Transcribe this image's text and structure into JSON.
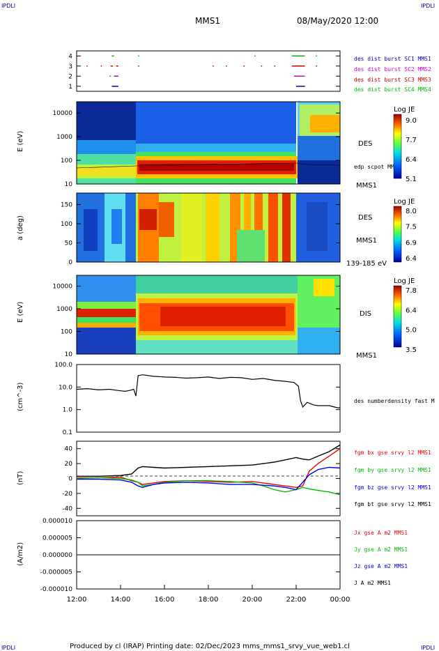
{
  "header": {
    "corner_tl": "IPDLI",
    "corner_tr": "IPDLI",
    "corner_bl": "IPDLI",
    "corner_br": "IPDLI",
    "spacecraft": "MMS1",
    "datetime": "08/May/2020 12:00"
  },
  "footer": {
    "text": "Produced by cl (IRAP)   Printing date: 02/Dec/2023   mms_mms1_srvy_vue_web1.cl"
  },
  "chart_data": [
    {
      "type": "scatter",
      "name": "burst-panel",
      "y_ticks": [
        "1",
        "2",
        "3",
        "4"
      ],
      "ylim": [
        0.5,
        4.5
      ],
      "legend": [
        {
          "label": "des dist burst SC1 MMS1",
          "color": "#0000cc"
        },
        {
          "label": "des dist burst SC2 MMS2",
          "color": "#cc00cc"
        },
        {
          "label": "des dist burst SC3 MMS3",
          "color": "#cc0000"
        },
        {
          "label": "des dist burst SC4 MMS4",
          "color": "#00bb00"
        }
      ],
      "intervals": [
        {
          "level": 4,
          "color": "#00bb00",
          "spans": [
            [
              13.6,
              13.7
            ],
            [
              14.8,
              14.85
            ],
            [
              20.1,
              20.15
            ],
            [
              21.8,
              22.4
            ],
            [
              22.9,
              22.95
            ]
          ]
        },
        {
          "level": 3,
          "color": "#cc0000",
          "spans": [
            [
              12.45,
              12.5
            ],
            [
              13.1,
              13.15
            ],
            [
              13.55,
              13.65
            ],
            [
              13.8,
              13.9
            ],
            [
              14.8,
              14.85
            ],
            [
              18.2,
              18.25
            ],
            [
              18.8,
              18.85
            ],
            [
              19.6,
              19.65
            ],
            [
              20.4,
              20.45
            ],
            [
              21.0,
              21.05
            ],
            [
              21.8,
              22.4
            ],
            [
              22.9,
              22.95
            ]
          ]
        },
        {
          "level": 2,
          "color": "#cc00cc",
          "spans": [
            [
              13.5,
              13.55
            ],
            [
              13.7,
              13.9
            ],
            [
              21.9,
              22.4
            ]
          ]
        },
        {
          "level": 1,
          "color": "#0000cc",
          "spans": [
            [
              13.6,
              13.9
            ],
            [
              22.0,
              22.4
            ]
          ]
        }
      ]
    },
    {
      "type": "heatmap",
      "name": "des-energy",
      "ylabel": "E (eV)",
      "y_ticks": [
        "10",
        "100",
        "1000",
        "10000"
      ],
      "ylim": [
        10,
        30000
      ],
      "log_y": true,
      "right_labels": [
        "DES",
        "edp scpot MMS1",
        "MMS1"
      ],
      "colorbar": {
        "title": "Log JE",
        "ticks": [
          "9.0",
          "7.7",
          "6.4",
          "5.1"
        ]
      }
    },
    {
      "type": "heatmap",
      "name": "des-pitch",
      "ylabel": "a (deg)",
      "y_ticks": [
        "0",
        "50",
        "100",
        "150"
      ],
      "ylim": [
        0,
        180
      ],
      "right_labels": [
        "DES",
        "MMS1",
        "139-185 eV"
      ],
      "colorbar": {
        "title": "Log JE",
        "ticks": [
          "8.0",
          "7.5",
          "6.9",
          "6.4"
        ]
      }
    },
    {
      "type": "heatmap",
      "name": "dis-energy",
      "ylabel": "E (eV)",
      "y_ticks": [
        "10",
        "100",
        "1000",
        "10000"
      ],
      "ylim": [
        10,
        30000
      ],
      "log_y": true,
      "right_labels": [
        "DIS",
        "MMS1"
      ],
      "colorbar": {
        "title": "Log JE",
        "ticks": [
          "7.8",
          "6.4",
          "5.0",
          "3.5"
        ]
      }
    },
    {
      "type": "line",
      "name": "density",
      "ylabel": "(cm^-3)",
      "y_ticks": [
        "0.1",
        "1.0",
        "10.0",
        "100.0"
      ],
      "ylim": [
        0.1,
        100
      ],
      "log_y": true,
      "series": [
        {
          "name": "des numberdensity fast M",
          "color": "#000000",
          "x": [
            12.0,
            12.5,
            13.0,
            13.5,
            13.9,
            14.2,
            14.4,
            14.6,
            14.7,
            14.8,
            15.0,
            15.5,
            16.0,
            16.5,
            17.0,
            17.5,
            18.0,
            18.5,
            19.0,
            19.5,
            20.0,
            20.5,
            21.0,
            21.5,
            21.9,
            22.1,
            22.2,
            22.3,
            22.5,
            22.8,
            23.0,
            23.5,
            23.9,
            24.0
          ],
          "y": [
            8,
            8.5,
            7.5,
            8,
            7,
            6.5,
            7,
            8,
            4,
            32,
            35,
            30,
            28,
            27,
            25,
            26,
            28,
            24,
            27,
            26,
            22,
            24,
            20,
            18,
            16,
            11,
            2.5,
            1.3,
            2.1,
            1.6,
            1.5,
            1.5,
            1.2,
            1.2
          ]
        }
      ]
    },
    {
      "type": "line",
      "name": "magnetic-field",
      "ylabel": "(nT)",
      "y_ticks": [
        "-40",
        "-20",
        "0",
        "20",
        "40"
      ],
      "ylim": [
        -50,
        50
      ],
      "series": [
        {
          "name": "fgm bx gse srvy l2 MMS1",
          "color": "#ee0000",
          "x": [
            12.0,
            13.0,
            14.0,
            14.5,
            14.8,
            15.0,
            15.5,
            16.0,
            17.0,
            18.0,
            19.0,
            20.0,
            21.0,
            21.5,
            22.0,
            22.3,
            22.6,
            23.0,
            23.5,
            24.0
          ],
          "y": [
            1,
            1,
            2,
            -3,
            -5,
            -8,
            -6,
            -4,
            -3,
            -4,
            -5,
            -4,
            -8,
            -10,
            -12,
            -10,
            10,
            20,
            30,
            40
          ]
        },
        {
          "name": "fgm by gse srvy l2 MMS1",
          "color": "#00bb00",
          "x": [
            12.0,
            13.0,
            14.0,
            14.5,
            14.8,
            15.0,
            15.5,
            16.0,
            17.0,
            18.0,
            19.0,
            20.0,
            20.5,
            21.0,
            21.5,
            22.0,
            22.3,
            22.6,
            23.0,
            23.5,
            24.0
          ],
          "y": [
            0,
            1,
            0,
            -2,
            -5,
            -10,
            -8,
            -5,
            -3,
            -3,
            -4,
            -6,
            -10,
            -15,
            -18,
            -15,
            -12,
            -14,
            -16,
            -18,
            -22
          ]
        },
        {
          "name": "fgm bz gse srvy l2 MMS1",
          "color": "#0000ee",
          "x": [
            12.0,
            13.0,
            14.0,
            14.5,
            14.8,
            15.0,
            15.5,
            16.0,
            17.0,
            18.0,
            19.0,
            20.0,
            21.0,
            21.5,
            22.0,
            22.3,
            22.6,
            23.0,
            23.5,
            24.0
          ],
          "y": [
            -1,
            -1,
            -2,
            -5,
            -10,
            -12,
            -8,
            -6,
            -5,
            -6,
            -8,
            -8,
            -10,
            -12,
            -15,
            -5,
            5,
            12,
            15,
            14
          ]
        },
        {
          "name": "fgm bt gse srvy l2 MMS1",
          "color": "#000000",
          "x": [
            12.0,
            13.0,
            14.0,
            14.5,
            14.8,
            15.0,
            15.5,
            16.0,
            17.0,
            18.0,
            19.0,
            20.0,
            21.0,
            21.5,
            22.0,
            22.3,
            22.6,
            23.0,
            23.5,
            24.0
          ],
          "y": [
            3,
            3,
            4,
            6,
            14,
            16,
            15,
            14,
            15,
            16,
            17,
            18,
            22,
            25,
            28,
            26,
            25,
            30,
            36,
            45
          ]
        }
      ]
    },
    {
      "type": "line",
      "name": "current-density",
      "ylabel": "(A/m2)",
      "y_ticks": [
        "-0.000010",
        "-0.000005",
        "0.000000",
        "0.000005",
        "0.000010"
      ],
      "ylim": [
        -1e-05,
        1e-05
      ],
      "series": [
        {
          "name": "Jx gse A m2 MMS1",
          "color": "#ee0000",
          "x": [
            12.0,
            24.0
          ],
          "y": [
            0,
            0
          ]
        },
        {
          "name": "Jy gse A m2 MMS1",
          "color": "#00bb00",
          "x": [
            12.0,
            24.0
          ],
          "y": [
            0,
            0
          ]
        },
        {
          "name": "Jz gse A m2 MMS1",
          "color": "#0000ee",
          "x": [
            12.0,
            24.0
          ],
          "y": [
            0,
            0
          ]
        },
        {
          "name": "J A m2 MMS1",
          "color": "#000000",
          "x": [
            12.0,
            24.0
          ],
          "y": [
            0,
            0
          ]
        }
      ]
    }
  ],
  "x_axis": {
    "tick_labels": [
      "12:00",
      "14:00",
      "16:00",
      "18:00",
      "20:00",
      "22:00",
      "00:00"
    ],
    "range_hours": [
      12,
      24
    ]
  }
}
